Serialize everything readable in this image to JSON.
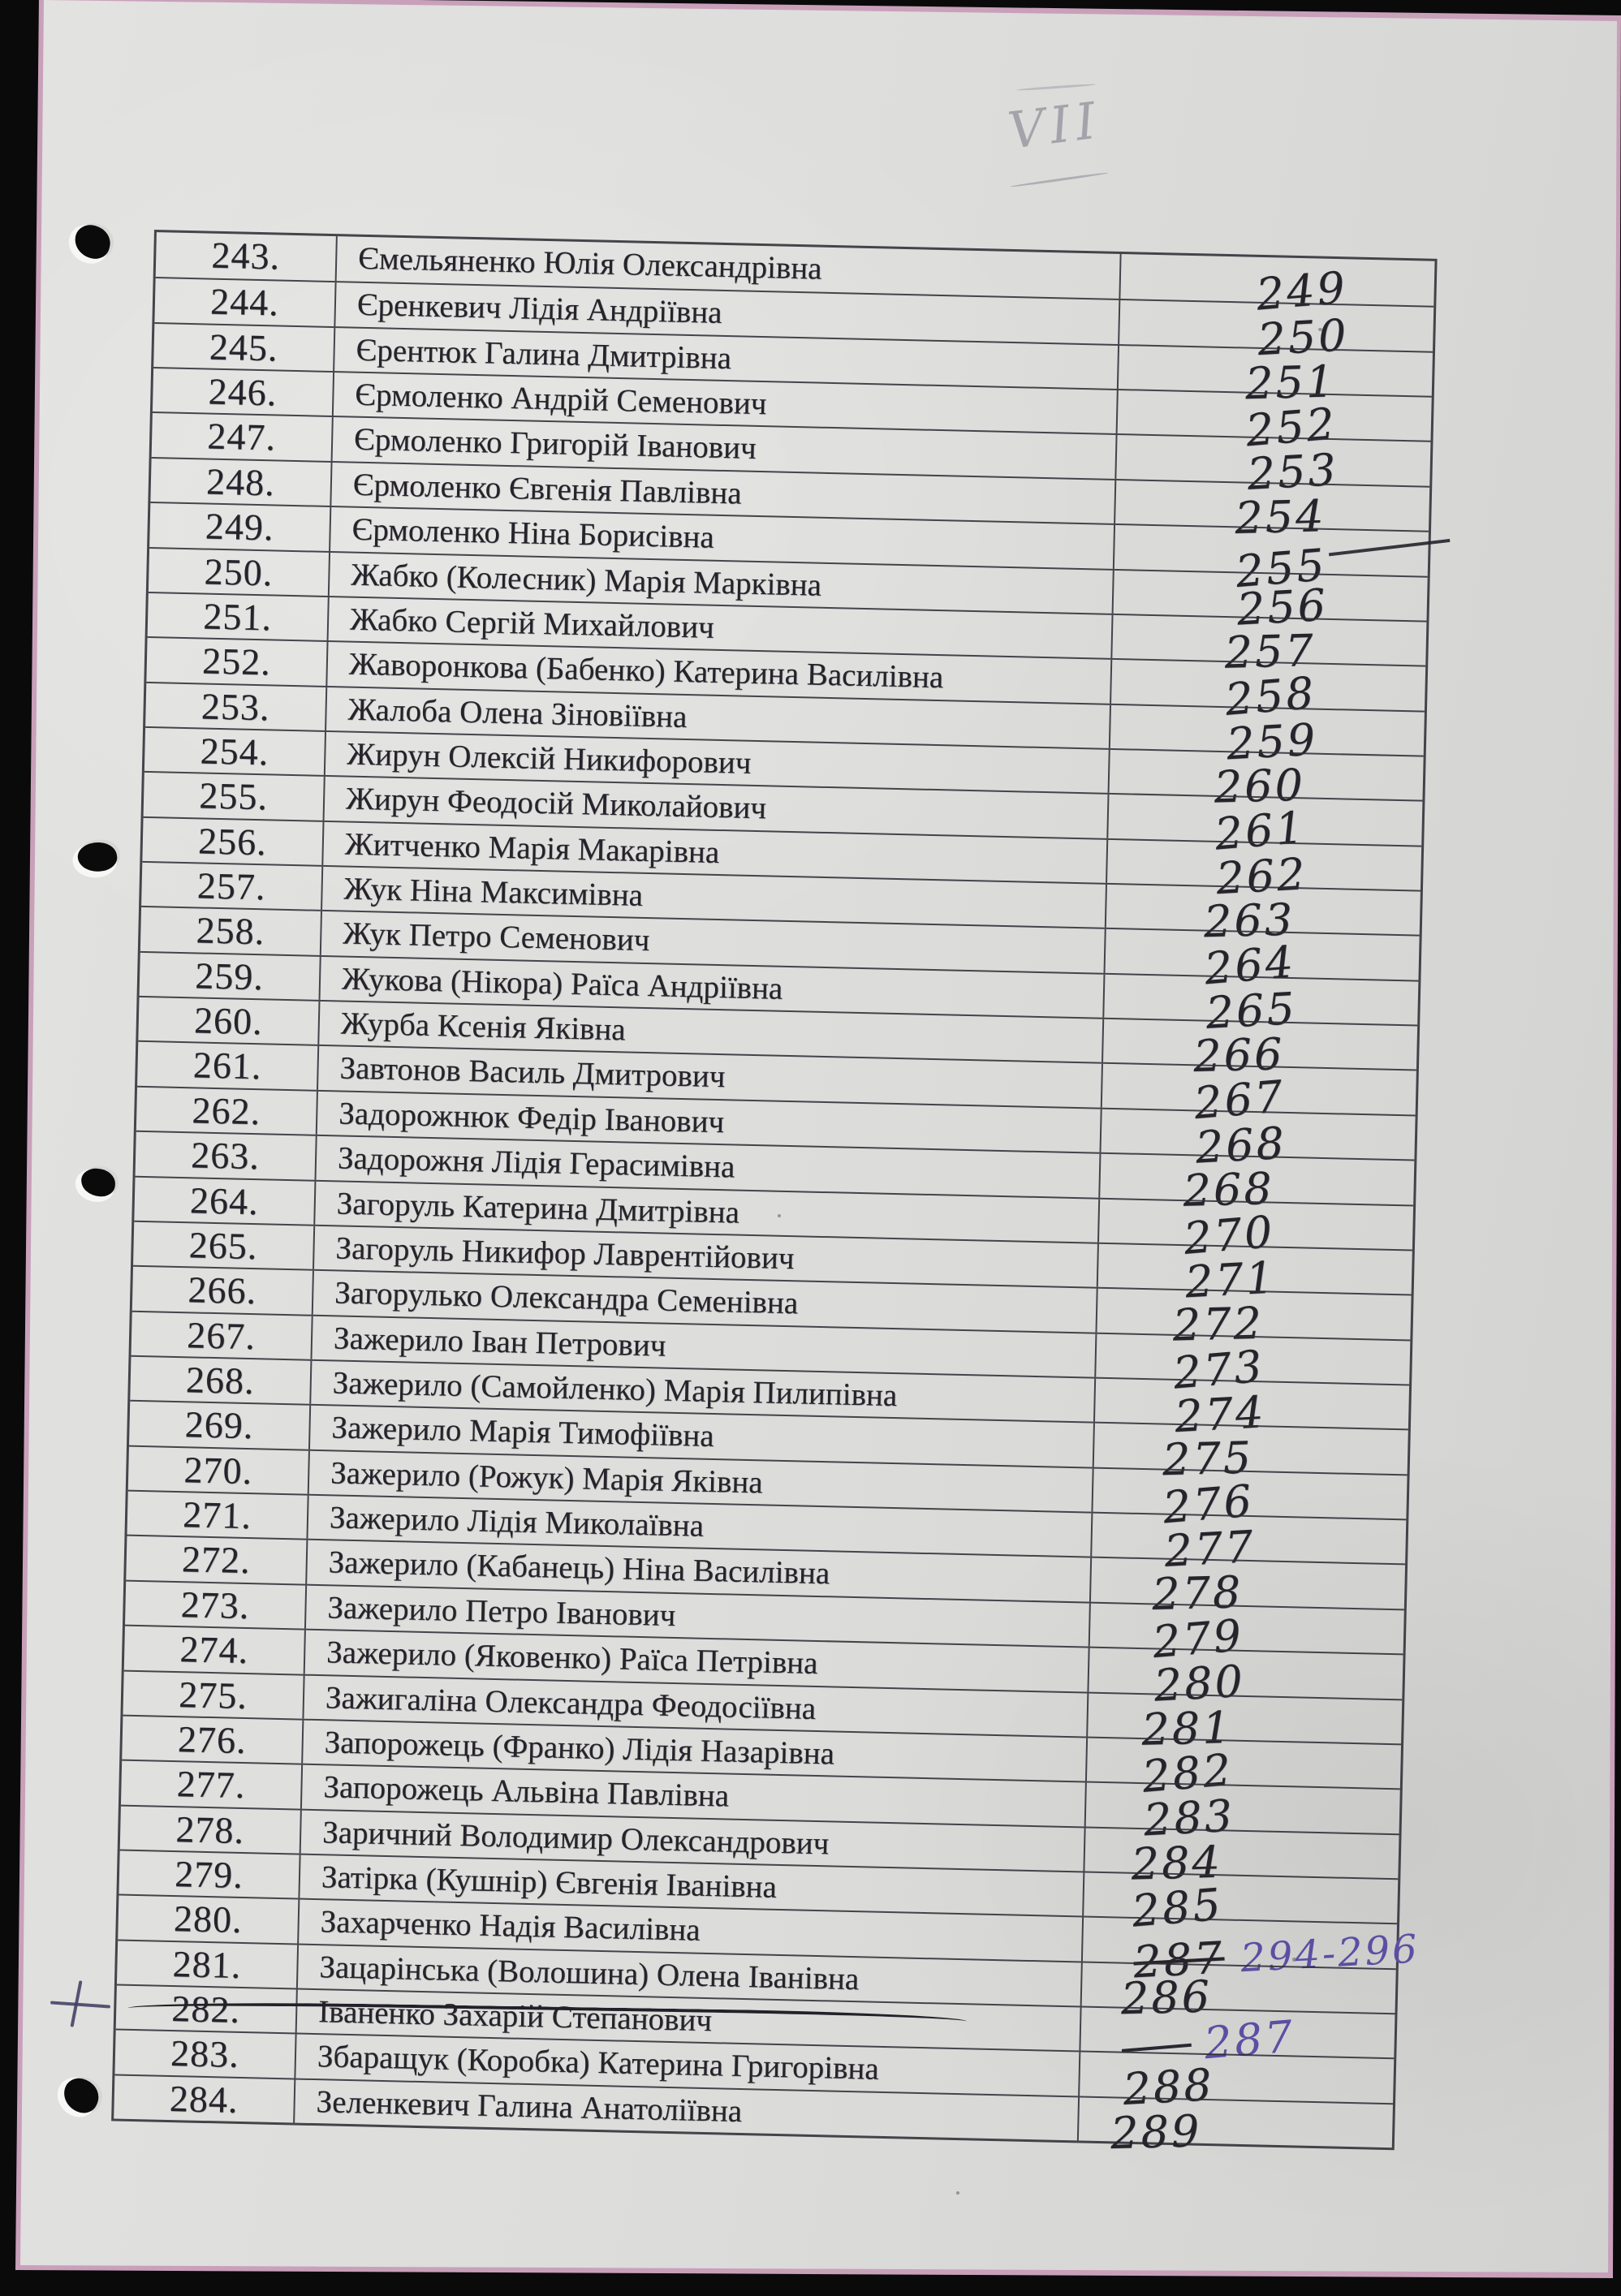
{
  "page": {
    "page_marker": "VII",
    "margin_mark": "+",
    "colors": {
      "ink_dark": "#26232b",
      "ink_purple": "#5a4fa3",
      "pencil": "#8f8e99",
      "paper": "#dcdcda",
      "table_line": "#35323b",
      "scan_background": "#0a0a0b"
    },
    "table": {
      "rows": [
        {
          "no": "243.",
          "name": "Ємельяненко Юлія Олександрівна",
          "value": "249"
        },
        {
          "no": "244.",
          "name": "Єренкевич Лідія Андріївна",
          "value": "250"
        },
        {
          "no": "245.",
          "name": "Єрентюк Галина Дмитрівна",
          "value": "251"
        },
        {
          "no": "246.",
          "name": "Єрмоленко Андрій Семенович",
          "value": "252"
        },
        {
          "no": "247.",
          "name": "Єрмоленко Григорій Іванович",
          "value": "253"
        },
        {
          "no": "248.",
          "name": "Єрмоленко Євгенія Павлівна",
          "value": "254"
        },
        {
          "no": "249.",
          "name": "Єрмоленко Ніна Борисівна",
          "value": "255",
          "value_tail": true
        },
        {
          "no": "250.",
          "name": "Жабко (Колесник) Марія Марківна",
          "value": "256"
        },
        {
          "no": "251.",
          "name": "Жабко Сергій Михайлович",
          "value": "257"
        },
        {
          "no": "252.",
          "name": "Жаворонкова (Бабенко) Катерина Василівна",
          "value": "258"
        },
        {
          "no": "253.",
          "name": "Жалоба Олена Зіновіївна",
          "value": "259"
        },
        {
          "no": "254.",
          "name": "Жирун Олексій Никифорович",
          "value": "260"
        },
        {
          "no": "255.",
          "name": "Жирун Феодосій Миколайович",
          "value": "261"
        },
        {
          "no": "256.",
          "name": "Житченко Марія Макарівна",
          "value": "262"
        },
        {
          "no": "257.",
          "name": "Жук Ніна Максимівна",
          "value": "263"
        },
        {
          "no": "258.",
          "name": "Жук Петро Семенович",
          "value": "264"
        },
        {
          "no": "259.",
          "name": "Жукова (Нікора) Раїса Андріївна",
          "value": "265"
        },
        {
          "no": "260.",
          "name": "Журба Ксенія Яківна",
          "value": "266"
        },
        {
          "no": "261.",
          "name": "Завтонов Василь Дмитрович",
          "value": "267"
        },
        {
          "no": "262.",
          "name": "Задорожнюк Федір Іванович",
          "value": "268"
        },
        {
          "no": "263.",
          "name": "Задорожня Лідія Герасимівна",
          "value": "268"
        },
        {
          "no": "264.",
          "name": "Загоруль Катерина Дмитрівна",
          "value": "270"
        },
        {
          "no": "265.",
          "name": "Загоруль Никифор Лаврентійович",
          "value": "271"
        },
        {
          "no": "266.",
          "name": "Загорулько Олександра Семенівна",
          "value": "272"
        },
        {
          "no": "267.",
          "name": "Зажерило Іван Петрович",
          "value": "273"
        },
        {
          "no": "268.",
          "name": "Зажерило (Самойленко) Марія Пилипівна",
          "value": "274"
        },
        {
          "no": "269.",
          "name": "Зажерило Марія Тимофіївна",
          "value": "275"
        },
        {
          "no": "270.",
          "name": "Зажерило (Рожук) Марія Яківна",
          "value": "276"
        },
        {
          "no": "271.",
          "name": "Зажерило Лідія Миколаївна",
          "value": "277"
        },
        {
          "no": "272.",
          "name": "Зажерило (Кабанець) Ніна Василівна",
          "value": "278"
        },
        {
          "no": "273.",
          "name": "Зажерило Петро Іванович",
          "value": "279"
        },
        {
          "no": "274.",
          "name": "Зажерило (Яковенко) Раїса Петрівна",
          "value": "280"
        },
        {
          "no": "275.",
          "name": "Зажигаліна Олександра Феодосіївна",
          "value": "281"
        },
        {
          "no": "276.",
          "name": "Запорожець (Франко) Лідія Назарівна",
          "value": "282"
        },
        {
          "no": "277.",
          "name": "Запорожець Альвіна Павлівна",
          "value": "283"
        },
        {
          "no": "278.",
          "name": "Заричний Володимир Олександрович",
          "value": "284"
        },
        {
          "no": "279.",
          "name": "Затірка (Кушнір) Євгенія Іванівна",
          "value": "285"
        },
        {
          "no": "280.",
          "name": "Захарченко Надія Василівна",
          "value": "287",
          "value_struck": true,
          "value_extra": "294-296"
        },
        {
          "no": "281.",
          "name": "Зацарінська (Волошина) Олена Іванівна",
          "value": "286"
        },
        {
          "no": "282.",
          "name": "Іваненко Захарій Степанович",
          "row_struck": true,
          "value": "287",
          "value_ink": "purple",
          "value_dash": true
        },
        {
          "no": "283.",
          "name": "Збаращук (Коробка) Катерина Григорівна",
          "value": "288"
        },
        {
          "no": "284.",
          "name": "Зеленкевич Галина Анатоліївна",
          "value": "289"
        }
      ]
    }
  }
}
